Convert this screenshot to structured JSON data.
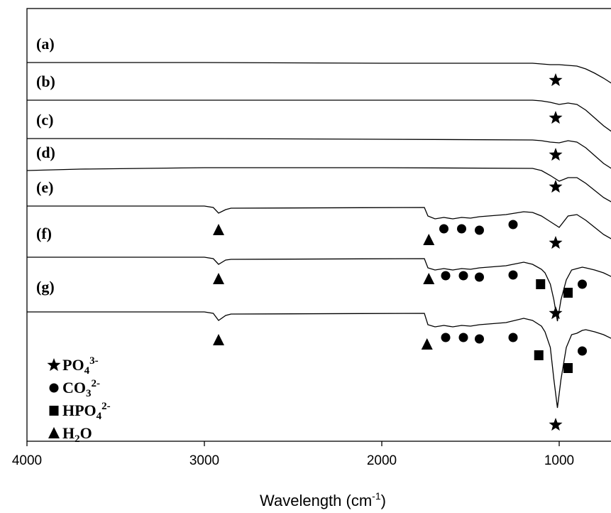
{
  "chart_data": {
    "type": "line",
    "title": "",
    "xlabel": "Wavelength (cm",
    "xlabel_sup": "-1",
    "xlabel_tail": ")",
    "ylabel": "",
    "xlim": [
      4000,
      580
    ],
    "x_reversed": true,
    "x_ticks": [
      4000,
      3000,
      2000,
      1000
    ],
    "x_tick_labels": [
      "4000",
      "3000",
      "2000",
      "1000"
    ],
    "grid": false,
    "legend_placement": "bottom-left",
    "legend": [
      {
        "marker": "star",
        "base": "PO",
        "sub": "4",
        "sup": "3-"
      },
      {
        "marker": "circle",
        "base": "CO",
        "sub": "3",
        "sup": "2-"
      },
      {
        "marker": "square",
        "base": "HPO",
        "sub": "4",
        "sup": "2-"
      },
      {
        "marker": "triangle",
        "base": "H",
        "sub": "2",
        "sup": "",
        "tail": "O"
      }
    ],
    "series": [
      {
        "name": "(a)",
        "offset": 88,
        "x": [
          4000,
          3000,
          2000,
          1150,
          1100,
          1050,
          1000,
          950,
          900,
          850,
          800,
          750,
          700,
          650,
          600,
          580
        ],
        "y": [
          0,
          0,
          -1,
          -1,
          -2,
          -3,
          -3,
          -4,
          -5,
          -9,
          -15,
          -22,
          -30,
          -36,
          -40,
          -41
        ]
      },
      {
        "name": "(b)",
        "offset": 141,
        "x": [
          4000,
          3000,
          2000,
          1150,
          1100,
          1050,
          1000,
          950,
          900,
          850,
          800,
          750,
          700,
          650,
          600,
          580
        ],
        "y": [
          0,
          0,
          0,
          0,
          -1,
          -3,
          -6,
          -4,
          -6,
          -14,
          -25,
          -36,
          -45,
          -51,
          -54,
          -55
        ]
      },
      {
        "name": "(c)",
        "offset": 195,
        "x": [
          4000,
          3000,
          2000,
          1150,
          1100,
          1050,
          1000,
          950,
          900,
          850,
          800,
          750,
          700,
          650,
          600,
          580
        ],
        "y": [
          0,
          0,
          -1,
          -2,
          -3,
          -5,
          -6,
          -3,
          -5,
          -13,
          -24,
          -35,
          -43,
          -48,
          -50,
          -51
        ]
      },
      {
        "name": "(d)",
        "offset": 240,
        "x": [
          4000,
          3700,
          3000,
          2000,
          1150,
          1100,
          1050,
          1000,
          950,
          900,
          850,
          800,
          750,
          700,
          650,
          600,
          580
        ],
        "y": [
          0,
          2,
          4,
          4,
          3,
          0,
          -7,
          -15,
          -10,
          -10,
          -18,
          -28,
          -38,
          -45,
          -49,
          -51,
          -52
        ]
      },
      {
        "name": "(e)",
        "offset": 290,
        "x": [
          4000,
          3000,
          2950,
          2920,
          2880,
          2850,
          1760,
          1740,
          1700,
          1650,
          1600,
          1550,
          1500,
          1450,
          1400,
          1300,
          1200,
          1150,
          1100,
          1050,
          1000,
          950,
          900,
          850,
          800,
          750,
          700,
          650,
          600,
          580
        ],
        "y": [
          0,
          0,
          -2,
          -10,
          -5,
          -3,
          -2,
          -14,
          -18,
          -16,
          -18,
          -16,
          -17,
          -15,
          -14,
          -12,
          -8,
          -9,
          -14,
          -22,
          -30,
          -14,
          -12,
          -20,
          -30,
          -40,
          -47,
          -50,
          -50,
          -48
        ]
      },
      {
        "name": "(f)",
        "offset": 362,
        "x": [
          4000,
          3000,
          2950,
          2920,
          2880,
          2850,
          1760,
          1740,
          1700,
          1650,
          1600,
          1550,
          1500,
          1450,
          1400,
          1300,
          1200,
          1150,
          1100,
          1080,
          1050,
          1030,
          1010,
          990,
          960,
          930,
          900,
          870,
          850,
          800,
          750,
          700,
          650,
          620,
          600,
          585,
          580
        ],
        "y": [
          0,
          0,
          -2,
          -10,
          -4,
          -3,
          -2,
          -15,
          -18,
          -16,
          -18,
          -16,
          -17,
          -15,
          -14,
          -12,
          -7,
          -10,
          -17,
          -22,
          -38,
          -60,
          -90,
          -60,
          -32,
          -18,
          -16,
          -14,
          -15,
          -18,
          -22,
          -28,
          -38,
          -50,
          -60,
          -48,
          -52
        ]
      },
      {
        "name": "(g)",
        "offset": 439,
        "x": [
          4000,
          3000,
          2950,
          2920,
          2880,
          2850,
          1760,
          1740,
          1700,
          1650,
          1600,
          1550,
          1500,
          1450,
          1400,
          1300,
          1200,
          1150,
          1100,
          1080,
          1050,
          1030,
          1010,
          990,
          960,
          930,
          900,
          870,
          850,
          800,
          750,
          700,
          650,
          620,
          600,
          585,
          580
        ],
        "y": [
          0,
          0,
          -2,
          -12,
          -5,
          -3,
          -2,
          -18,
          -21,
          -19,
          -21,
          -19,
          -20,
          -18,
          -17,
          -15,
          -9,
          -12,
          -20,
          -28,
          -50,
          -95,
          -135,
          -95,
          -50,
          -32,
          -30,
          -26,
          -25,
          -28,
          -32,
          -38,
          -55,
          -70,
          -95,
          -68,
          -72
        ]
      }
    ],
    "annotations": [
      {
        "marker": "star",
        "points": [
          [
            1020,
            113
          ],
          [
            1020,
            166
          ],
          [
            1020,
            218
          ],
          [
            1020,
            263
          ],
          [
            1020,
            342
          ],
          [
            1020,
            441
          ],
          [
            590,
            441
          ],
          [
            570,
            472
          ],
          [
            1020,
            598
          ],
          [
            595,
            578
          ],
          [
            570,
            610
          ]
        ]
      },
      {
        "marker": "triangle",
        "points": [
          [
            2920,
            324
          ],
          [
            1735,
            338
          ],
          [
            2920,
            393
          ],
          [
            1735,
            393
          ],
          [
            2920,
            479
          ],
          [
            1745,
            485
          ]
        ]
      },
      {
        "marker": "circle",
        "points": [
          [
            1650,
            322
          ],
          [
            1550,
            322
          ],
          [
            1450,
            324
          ],
          [
            1260,
            316
          ],
          [
            1640,
            388
          ],
          [
            1540,
            388
          ],
          [
            1450,
            390
          ],
          [
            1260,
            387
          ],
          [
            870,
            400
          ],
          [
            1640,
            475
          ],
          [
            1540,
            475
          ],
          [
            1450,
            477
          ],
          [
            1260,
            475
          ],
          [
            870,
            494
          ]
        ]
      },
      {
        "marker": "square",
        "points": [
          [
            1105,
            400
          ],
          [
            950,
            412
          ],
          [
            1115,
            500
          ],
          [
            950,
            518
          ]
        ]
      }
    ]
  }
}
